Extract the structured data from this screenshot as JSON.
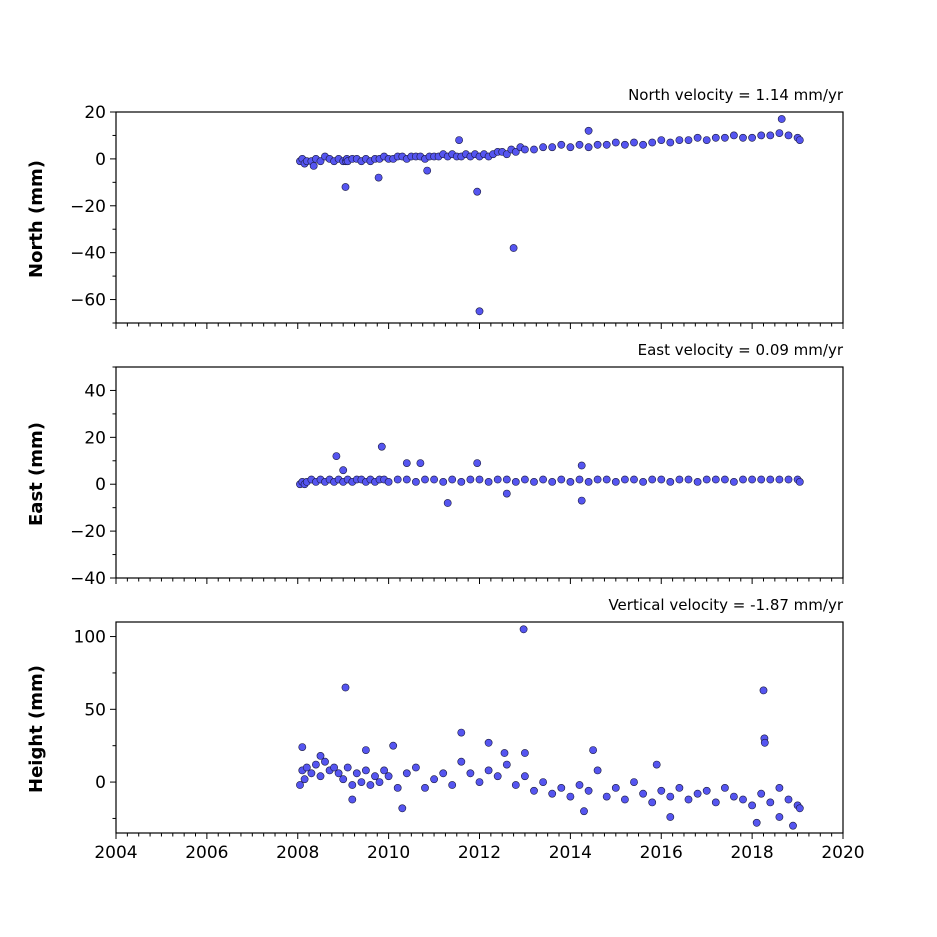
{
  "colors": {
    "marker_fill": "#5555f0",
    "marker_edge": "#1a1a40",
    "axis": "#000000"
  },
  "chart_data": [
    {
      "type": "scatter",
      "title": "North velocity = 1.14 mm/yr",
      "ylabel": "North (mm)",
      "xlim": [
        2004,
        2020
      ],
      "ylim": [
        -70,
        20
      ],
      "yticks": [
        20,
        0,
        -20,
        -40,
        -60
      ],
      "xticks": [
        2004,
        2006,
        2008,
        2010,
        2012,
        2014,
        2016,
        2018,
        2020
      ],
      "show_xtick_labels": false,
      "series": [
        {
          "x": [
            2008.05,
            2008.1,
            2008.15,
            2008.2,
            2008.3,
            2008.4,
            2008.5,
            2008.6,
            2008.7,
            2008.8,
            2008.9,
            2009.0,
            2009.06,
            2009.08,
            2009.1,
            2009.2,
            2009.3,
            2009.4,
            2009.5,
            2009.6,
            2009.7,
            2009.8,
            2009.9,
            2010.0,
            2010.1,
            2010.2,
            2010.3,
            2010.4,
            2010.5,
            2010.6,
            2010.7,
            2010.8,
            2010.9,
            2011.0,
            2011.1,
            2011.2,
            2011.3,
            2011.4,
            2011.5,
            2011.6,
            2011.7,
            2011.8,
            2011.9,
            2012.0,
            2012.1,
            2012.2,
            2012.3,
            2012.4,
            2012.5,
            2012.6,
            2012.7,
            2012.8,
            2012.9,
            2013.0,
            2013.2,
            2013.4,
            2013.6,
            2013.8,
            2014.0,
            2014.2,
            2014.4,
            2014.6,
            2014.8,
            2015.0,
            2015.2,
            2015.4,
            2015.6,
            2015.8,
            2016.0,
            2016.2,
            2016.4,
            2016.6,
            2016.8,
            2017.0,
            2017.2,
            2017.4,
            2017.6,
            2017.8,
            2018.0,
            2018.2,
            2018.4,
            2018.6,
            2018.8,
            2019.0,
            2019.05,
            2008.35,
            2009.05,
            2009.78,
            2011.55,
            2011.95,
            2012.0,
            2012.75,
            2014.4,
            2018.65,
            2010.85
          ],
          "y": [
            -1,
            0,
            -2,
            -1,
            -1,
            0,
            -1,
            1,
            0,
            -1,
            0,
            -1,
            -1,
            0,
            -1,
            0,
            0,
            -1,
            0,
            -1,
            0,
            0,
            1,
            0,
            0,
            1,
            1,
            0,
            1,
            1,
            1,
            0,
            1,
            1,
            1,
            2,
            1,
            2,
            1,
            1,
            2,
            1,
            2,
            1,
            2,
            1,
            2,
            3,
            3,
            2,
            4,
            3,
            5,
            4,
            4,
            5,
            5,
            6,
            5,
            6,
            5,
            6,
            6,
            7,
            6,
            7,
            6,
            7,
            8,
            7,
            8,
            8,
            9,
            8,
            9,
            9,
            10,
            9,
            9,
            10,
            10,
            11,
            10,
            9,
            8,
            -3,
            -12,
            -8,
            8,
            -14,
            -65,
            -38,
            12,
            17,
            -5
          ]
        }
      ]
    },
    {
      "type": "scatter",
      "title": "East velocity = 0.09 mm/yr",
      "ylabel": "East (mm)",
      "xlim": [
        2004,
        2020
      ],
      "ylim": [
        -40,
        50
      ],
      "yticks": [
        40,
        20,
        0,
        -20,
        -40
      ],
      "xticks": [
        2004,
        2006,
        2008,
        2010,
        2012,
        2014,
        2016,
        2018,
        2020
      ],
      "show_xtick_labels": false,
      "series": [
        {
          "x": [
            2008.05,
            2008.1,
            2008.15,
            2008.2,
            2008.3,
            2008.4,
            2008.5,
            2008.6,
            2008.7,
            2008.8,
            2008.9,
            2009.0,
            2009.1,
            2009.2,
            2009.3,
            2009.4,
            2009.5,
            2009.6,
            2009.7,
            2009.8,
            2009.9,
            2010.0,
            2010.2,
            2010.4,
            2010.6,
            2010.8,
            2011.0,
            2011.2,
            2011.4,
            2011.6,
            2011.8,
            2012.0,
            2012.2,
            2012.4,
            2012.6,
            2012.8,
            2013.0,
            2013.2,
            2013.4,
            2013.6,
            2013.8,
            2014.0,
            2014.2,
            2014.4,
            2014.6,
            2014.8,
            2015.0,
            2015.2,
            2015.4,
            2015.6,
            2015.8,
            2016.0,
            2016.2,
            2016.4,
            2016.6,
            2016.8,
            2017.0,
            2017.2,
            2017.4,
            2017.6,
            2017.8,
            2018.0,
            2018.2,
            2018.4,
            2018.6,
            2018.8,
            2019.0,
            2019.05,
            2008.85,
            2009.0,
            2009.85,
            2010.4,
            2010.7,
            2011.3,
            2011.95,
            2014.25,
            2014.25,
            2012.6
          ],
          "y": [
            0,
            1,
            0,
            1,
            2,
            1,
            2,
            1,
            2,
            1,
            2,
            1,
            2,
            1,
            2,
            2,
            1,
            2,
            1,
            2,
            2,
            1,
            2,
            2,
            1,
            2,
            2,
            1,
            2,
            1,
            2,
            2,
            1,
            2,
            2,
            1,
            2,
            1,
            2,
            1,
            2,
            1,
            2,
            1,
            2,
            2,
            1,
            2,
            2,
            1,
            2,
            2,
            1,
            2,
            2,
            1,
            2,
            2,
            2,
            1,
            2,
            2,
            2,
            2,
            2,
            2,
            2,
            1,
            12,
            6,
            16,
            9,
            9,
            -8,
            9,
            8,
            -7,
            -4
          ]
        }
      ]
    },
    {
      "type": "scatter",
      "title": "Vertical velocity = -1.87 mm/yr",
      "ylabel": "Height (mm)",
      "xlim": [
        2004,
        2020
      ],
      "ylim": [
        -35,
        110
      ],
      "yticks": [
        100,
        50,
        0
      ],
      "xticks": [
        2004,
        2006,
        2008,
        2010,
        2012,
        2014,
        2016,
        2018,
        2020
      ],
      "xticklabels": [
        "2004",
        "2006",
        "2008",
        "2010",
        "2012",
        "2014",
        "2016",
        "2018",
        "2020"
      ],
      "show_xtick_labels": true,
      "series": [
        {
          "x": [
            2008.05,
            2008.1,
            2008.15,
            2008.2,
            2008.3,
            2008.4,
            2008.5,
            2008.6,
            2008.7,
            2008.8,
            2008.9,
            2009.0,
            2009.1,
            2009.2,
            2009.3,
            2009.4,
            2009.5,
            2009.6,
            2009.7,
            2009.8,
            2009.9,
            2010.0,
            2010.2,
            2010.4,
            2010.6,
            2010.8,
            2011.0,
            2011.2,
            2011.4,
            2011.6,
            2011.8,
            2012.0,
            2012.2,
            2012.4,
            2012.6,
            2012.8,
            2013.0,
            2013.2,
            2013.4,
            2013.6,
            2013.8,
            2014.0,
            2014.2,
            2014.4,
            2014.6,
            2014.8,
            2015.0,
            2015.2,
            2015.4,
            2015.6,
            2015.8,
            2016.0,
            2016.2,
            2016.4,
            2016.6,
            2016.8,
            2017.0,
            2017.2,
            2017.4,
            2017.6,
            2017.8,
            2018.0,
            2018.2,
            2018.4,
            2018.6,
            2018.8,
            2019.0,
            2019.05,
            2008.1,
            2008.5,
            2009.05,
            2009.5,
            2010.1,
            2011.6,
            2012.2,
            2012.55,
            2012.97,
            2013.0,
            2014.5,
            2015.9,
            2018.25,
            2018.27,
            2018.28,
            2018.1,
            2018.6,
            2018.9,
            2009.2,
            2010.3,
            2014.3,
            2016.2
          ],
          "y": [
            -2,
            8,
            2,
            10,
            6,
            12,
            4,
            14,
            8,
            10,
            6,
            2,
            10,
            -2,
            6,
            0,
            8,
            -2,
            4,
            0,
            8,
            4,
            -4,
            6,
            10,
            -4,
            2,
            6,
            -2,
            14,
            6,
            0,
            8,
            4,
            12,
            -2,
            4,
            -6,
            0,
            -8,
            -4,
            -10,
            -2,
            -6,
            8,
            -10,
            -4,
            -12,
            0,
            -8,
            -14,
            -6,
            -10,
            -4,
            -12,
            -8,
            -6,
            -14,
            -4,
            -10,
            -12,
            -16,
            -8,
            -14,
            -4,
            -12,
            -16,
            -18,
            24,
            18,
            65,
            22,
            25,
            34,
            27,
            20,
            105,
            20,
            22,
            12,
            63,
            30,
            27,
            -28,
            -24,
            -30,
            -12,
            -18,
            -20,
            -24
          ]
        }
      ]
    }
  ]
}
